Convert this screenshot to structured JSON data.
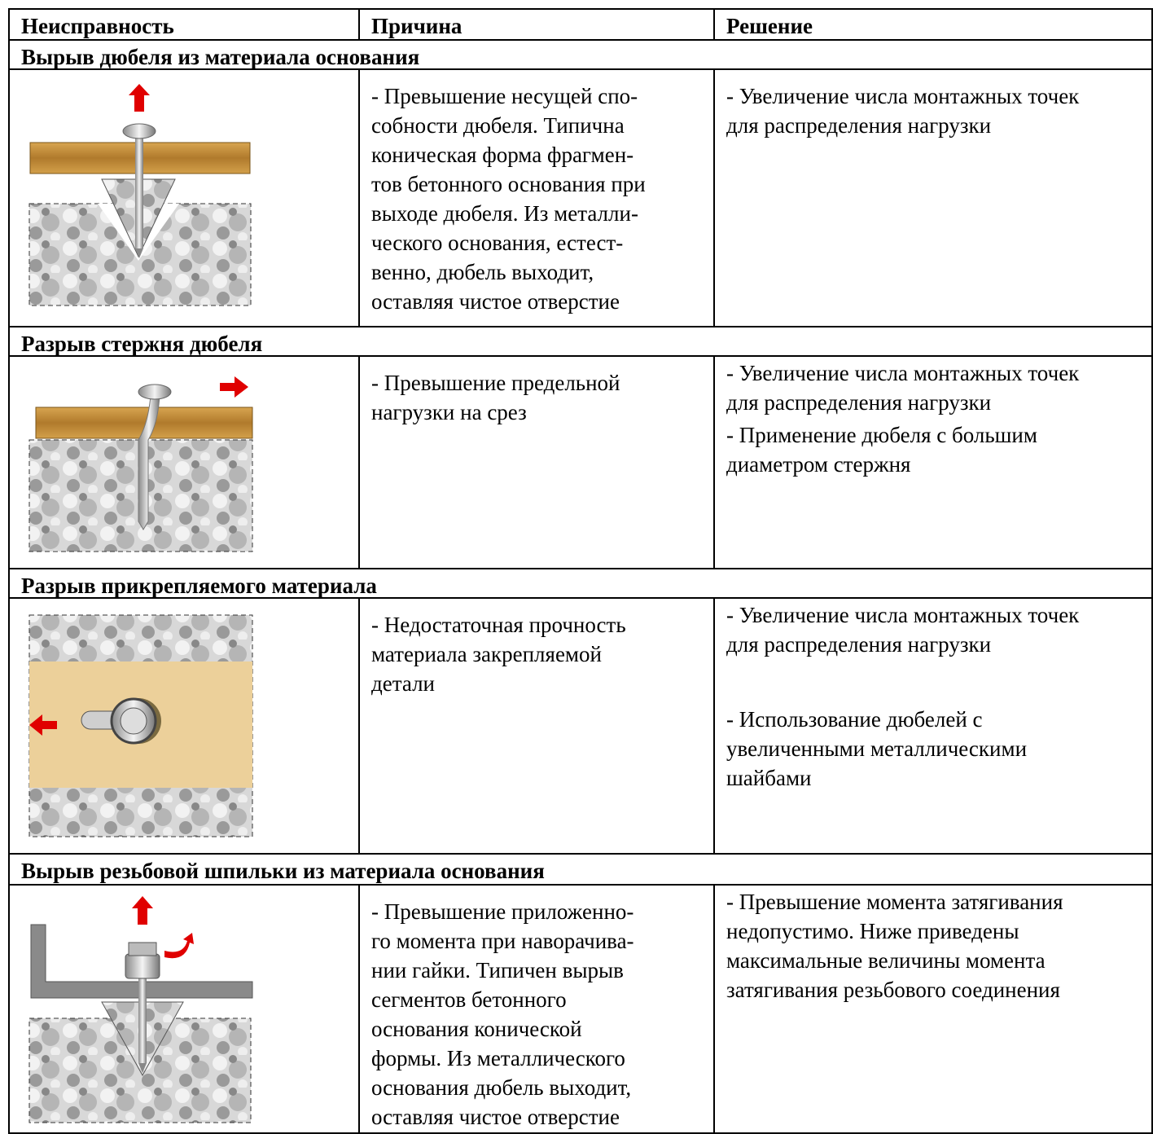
{
  "header": {
    "columns": [
      "Неисправность",
      "Причина",
      "Решение"
    ]
  },
  "sections": [
    {
      "title": "Вырыв дюбеля из материала основания",
      "cause": [
        "- Превышение несущей спо-",
        "собности дюбеля. Типична",
        "коническая форма фрагмен-",
        "тов бетонного основания при",
        "выходе дюбеля. Из металли-",
        "ческого основания, естест-",
        "венно, дюбель выходит,",
        "оставляя чистое отверстие"
      ],
      "solution": [
        [
          "- Увеличение числа монтажных точек",
          "для распределения нагрузки"
        ]
      ]
    },
    {
      "title": "Разрыв стержня дюбеля",
      "cause": [
        "- Превышение предельной",
        "нагрузки на срез"
      ],
      "solution": [
        [
          "- Увеличение числа монтажных точек",
          "для распределения нагрузки"
        ],
        [
          "- Применение дюбеля с большим",
          "диаметром стержня"
        ]
      ]
    },
    {
      "title": "Разрыв прикрепляемого материала",
      "cause": [
        "- Недостаточная прочность",
        "материала закрепляемой",
        "детали"
      ],
      "solution": [
        [
          "- Увеличение числа монтажных точек",
          "для распределения нагрузки"
        ],
        [
          "- Использование дюбелей с",
          "увеличенными металлическими",
          "шайбами"
        ]
      ]
    },
    {
      "title": "Вырыв резьбовой шпильки из материала основания",
      "cause": [
        "- Превышение приложенно-",
        "го момента при наворачива-",
        "нии гайки. Типичен вырыв",
        "сегментов бетонного",
        "основания конической",
        "формы. Из металлического",
        "основания дюбель выходит,",
        "оставляя чистое отверстие"
      ],
      "solution": [
        [
          "- Превышение момента затягивания",
          "недопустимо. Ниже приведены",
          "максимальные величины момента",
          "затягивания резьбового соединения"
        ]
      ]
    }
  ]
}
